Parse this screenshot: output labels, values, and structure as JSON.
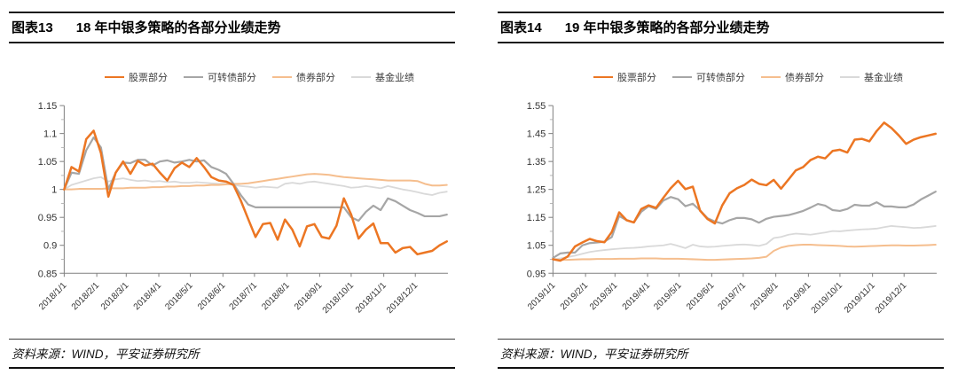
{
  "panels": [
    {
      "title_tag": "图表13",
      "title_text": "18 年中银多策略的各部分业绩走势",
      "source_text": "资料来源：WIND，平安证券研究所"
    },
    {
      "title_tag": "图表14",
      "title_text": "19 年中银多策略的各部分业绩走势",
      "source_text": "资料来源：WIND，平安证券研究所"
    }
  ],
  "colors": {
    "stock_orange": "#EC7623",
    "convertible_gray": "#A6A6A6",
    "bond_light_orange": "#F5BE8E",
    "fund_light_gray": "#D9D9D9",
    "axis": "#808080",
    "tick_text": "#333333"
  },
  "chart_data": [
    {
      "type": "line",
      "title": "图表13 18 年中银多策略的各部分业绩走势",
      "xlabel": "",
      "ylabel": "",
      "grid": false,
      "legend_position": "top",
      "ylim": [
        0.85,
        1.15
      ],
      "y_ticks": {
        "values": [
          0.85,
          0.9,
          0.95,
          1,
          1.05,
          1.1,
          1.15
        ],
        "labels": [
          "0.85",
          "0.9",
          "0.95",
          "1",
          "1.05",
          "1.1",
          "1.15"
        ]
      },
      "x_tick_labels": [
        "2018/1/1",
        "2018/2/1",
        "2018/3/1",
        "2018/4/1",
        "2018/5/1",
        "2018/6/1",
        "2018/7/1",
        "2018/8/1",
        "2018/9/1",
        "2018/10/1",
        "2018/11/1",
        "2018/12/1"
      ],
      "month_tick_days": [
        0,
        31,
        59,
        90,
        120,
        151,
        181,
        212,
        243,
        273,
        304,
        334
      ],
      "x_total_days": 365,
      "sample_interval_days": 7,
      "series": [
        {
          "id": "stock",
          "name": "股票部分",
          "color": "#EC7623",
          "width": 2.5,
          "values": [
            1.0,
            1.04,
            1.032,
            1.09,
            1.105,
            1.065,
            0.987,
            1.03,
            1.05,
            1.028,
            1.051,
            1.043,
            1.046,
            1.03,
            1.016,
            1.038,
            1.048,
            1.04,
            1.056,
            1.04,
            1.022,
            1.016,
            1.014,
            1.008,
            0.98,
            0.947,
            0.915,
            0.938,
            0.94,
            0.91,
            0.946,
            0.928,
            0.898,
            0.934,
            0.938,
            0.915,
            0.912,
            0.935,
            0.984,
            0.955,
            0.912,
            0.928,
            0.939,
            0.904,
            0.904,
            0.887,
            0.895,
            0.897,
            0.884,
            0.887,
            0.89,
            0.9,
            0.907
          ]
        },
        {
          "id": "convertible-bond",
          "name": "可转债部分",
          "color": "#A6A6A6",
          "width": 2.2,
          "values": [
            1.0,
            1.03,
            1.028,
            1.07,
            1.093,
            1.075,
            1.0,
            1.03,
            1.048,
            1.047,
            1.053,
            1.053,
            1.043,
            1.05,
            1.052,
            1.048,
            1.05,
            1.053,
            1.05,
            1.052,
            1.04,
            1.035,
            1.028,
            1.01,
            0.99,
            0.973,
            0.968,
            0.968,
            0.968,
            0.968,
            0.968,
            0.968,
            0.968,
            0.968,
            0.968,
            0.968,
            0.968,
            0.968,
            0.968,
            0.95,
            0.944,
            0.96,
            0.971,
            0.963,
            0.984,
            0.979,
            0.971,
            0.963,
            0.958,
            0.952,
            0.952,
            0.952,
            0.955
          ]
        },
        {
          "id": "bond",
          "name": "债券部分",
          "color": "#F5BE8E",
          "width": 2.0,
          "values": [
            1.0,
            1.0,
            1.001,
            1.001,
            1.001,
            1.001,
            1.002,
            1.002,
            1.002,
            1.003,
            1.003,
            1.003,
            1.004,
            1.004,
            1.005,
            1.005,
            1.006,
            1.006,
            1.007,
            1.007,
            1.008,
            1.008,
            1.009,
            1.01,
            1.01,
            1.011,
            1.013,
            1.015,
            1.017,
            1.019,
            1.021,
            1.023,
            1.025,
            1.027,
            1.028,
            1.027,
            1.026,
            1.024,
            1.022,
            1.021,
            1.02,
            1.019,
            1.018,
            1.017,
            1.016,
            1.016,
            1.016,
            1.016,
            1.015,
            1.01,
            1.007,
            1.007,
            1.008
          ]
        },
        {
          "id": "fund",
          "name": "基金业绩",
          "color": "#D9D9D9",
          "width": 1.8,
          "values": [
            1.0,
            1.008,
            1.012,
            1.016,
            1.02,
            1.022,
            1.014,
            1.018,
            1.02,
            1.017,
            1.015,
            1.016,
            1.014,
            1.015,
            1.013,
            1.014,
            1.012,
            1.012,
            1.013,
            1.012,
            1.011,
            1.01,
            1.01,
            1.008,
            1.006,
            1.005,
            1.003,
            1.005,
            1.004,
            1.003,
            1.01,
            1.012,
            1.01,
            1.013,
            1.014,
            1.012,
            1.01,
            1.008,
            1.006,
            1.003,
            1.004,
            1.006,
            1.004,
            1.002,
            1.006,
            1.003,
            1.0,
            0.998,
            0.995,
            0.992,
            0.99,
            0.994,
            0.996
          ]
        }
      ]
    },
    {
      "type": "line",
      "title": "图表14 19 年中银多策略的各部分业绩走势",
      "xlabel": "",
      "ylabel": "",
      "grid": false,
      "legend_position": "top",
      "ylim": [
        0.95,
        1.55
      ],
      "y_ticks": {
        "values": [
          0.95,
          1.05,
          1.15,
          1.25,
          1.35,
          1.45,
          1.55
        ],
        "labels": [
          "0.95",
          "1.05",
          "1.15",
          "1.25",
          "1.35",
          "1.45",
          "1.55"
        ]
      },
      "x_tick_labels": [
        "2019/1/1",
        "2019/2/1",
        "2019/3/1",
        "2019/4/1",
        "2019/5/1",
        "2019/6/1",
        "2019/7/1",
        "2019/8/1",
        "2019/9/1",
        "2019/10/1",
        "2019/11/1",
        "2019/12/1"
      ],
      "month_tick_days": [
        0,
        31,
        59,
        90,
        120,
        151,
        181,
        212,
        243,
        273,
        304,
        334
      ],
      "x_total_days": 365,
      "sample_interval_days": 7,
      "series": [
        {
          "id": "stock",
          "name": "股票部分",
          "color": "#EC7623",
          "width": 2.5,
          "values": [
            1.0,
            0.995,
            1.01,
            1.046,
            1.06,
            1.073,
            1.065,
            1.061,
            1.098,
            1.168,
            1.14,
            1.132,
            1.18,
            1.193,
            1.184,
            1.22,
            1.254,
            1.281,
            1.251,
            1.26,
            1.174,
            1.144,
            1.128,
            1.193,
            1.236,
            1.254,
            1.266,
            1.285,
            1.27,
            1.265,
            1.284,
            1.253,
            1.285,
            1.318,
            1.33,
            1.355,
            1.367,
            1.361,
            1.388,
            1.392,
            1.382,
            1.428,
            1.431,
            1.422,
            1.459,
            1.489,
            1.47,
            1.443,
            1.413,
            1.428,
            1.437,
            1.443,
            1.449
          ]
        },
        {
          "id": "convertible-bond",
          "name": "可转债部分",
          "color": "#A6A6A6",
          "width": 2.2,
          "values": [
            1.005,
            1.021,
            1.024,
            1.024,
            1.05,
            1.058,
            1.06,
            1.063,
            1.08,
            1.155,
            1.14,
            1.132,
            1.17,
            1.19,
            1.18,
            1.21,
            1.223,
            1.215,
            1.19,
            1.199,
            1.175,
            1.147,
            1.135,
            1.128,
            1.14,
            1.148,
            1.148,
            1.143,
            1.131,
            1.145,
            1.152,
            1.155,
            1.158,
            1.165,
            1.173,
            1.185,
            1.198,
            1.192,
            1.176,
            1.173,
            1.18,
            1.195,
            1.192,
            1.192,
            1.204,
            1.189,
            1.189,
            1.186,
            1.186,
            1.196,
            1.214,
            1.228,
            1.242
          ]
        },
        {
          "id": "bond",
          "name": "债券部分",
          "color": "#F5BE8E",
          "width": 2.0,
          "values": [
            1.0,
            0.998,
            0.998,
            0.999,
            1.0,
            1.0,
            1.001,
            1.001,
            1.001,
            1.002,
            1.002,
            1.002,
            1.003,
            1.003,
            1.003,
            1.002,
            1.002,
            1.002,
            1.001,
            1.0,
            0.999,
            0.998,
            0.998,
            0.999,
            1.0,
            1.001,
            1.002,
            1.003,
            1.005,
            1.009,
            1.03,
            1.042,
            1.048,
            1.051,
            1.052,
            1.052,
            1.051,
            1.05,
            1.049,
            1.048,
            1.046,
            1.045,
            1.046,
            1.047,
            1.048,
            1.049,
            1.05,
            1.05,
            1.049,
            1.049,
            1.05,
            1.051,
            1.052
          ]
        },
        {
          "id": "fund",
          "name": "基金业绩",
          "color": "#D9D9D9",
          "width": 1.8,
          "values": [
            1.0,
            1.003,
            1.008,
            1.013,
            1.02,
            1.026,
            1.03,
            1.033,
            1.036,
            1.038,
            1.04,
            1.041,
            1.043,
            1.046,
            1.048,
            1.05,
            1.055,
            1.048,
            1.04,
            1.052,
            1.046,
            1.044,
            1.045,
            1.048,
            1.05,
            1.052,
            1.053,
            1.051,
            1.048,
            1.055,
            1.076,
            1.08,
            1.088,
            1.092,
            1.09,
            1.088,
            1.092,
            1.096,
            1.101,
            1.1,
            1.103,
            1.105,
            1.107,
            1.108,
            1.11,
            1.115,
            1.119,
            1.117,
            1.115,
            1.112,
            1.113,
            1.116,
            1.119
          ]
        }
      ]
    }
  ]
}
